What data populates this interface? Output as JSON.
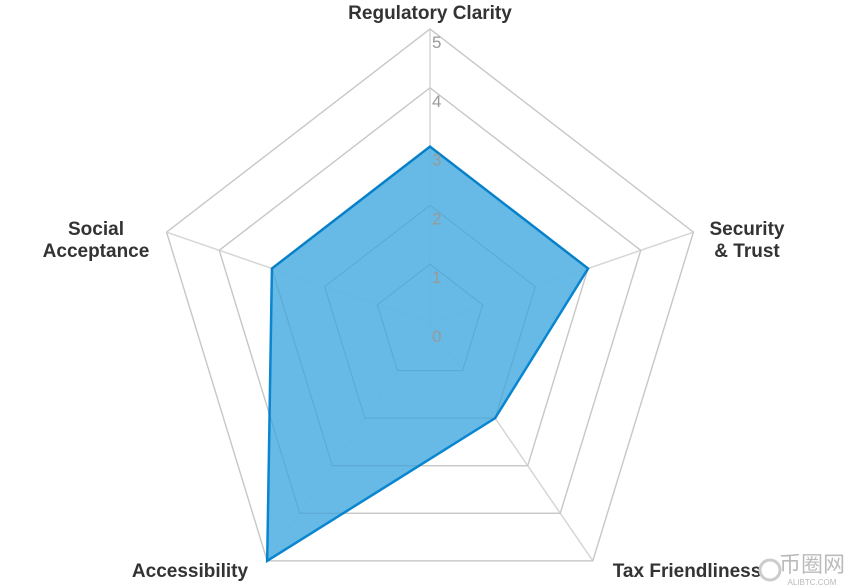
{
  "chart_data": {
    "type": "radar",
    "title": "",
    "axes": [
      "Regulatory Clarity",
      "Security & Trust",
      "Tax Friendliness",
      "Accessibility",
      "Social Acceptance"
    ],
    "axis_label_lines": [
      [
        "Regulatory Clarity"
      ],
      [
        "Security",
        "& Trust"
      ],
      [
        "Tax Friendliness"
      ],
      [
        "Accessibility"
      ],
      [
        "Social",
        "Acceptance"
      ]
    ],
    "range": [
      0,
      5
    ],
    "ticks": [
      "0",
      "1",
      "2",
      "3",
      "4",
      "5"
    ],
    "series": [
      {
        "name": "",
        "values": [
          3,
          3,
          2,
          5,
          3
        ],
        "color": "#0a86d0",
        "fill": "#5eb6e4"
      }
    ],
    "grid": true
  },
  "watermark": {
    "text": "币圈网",
    "subtext": "ALIBTC.COM"
  }
}
